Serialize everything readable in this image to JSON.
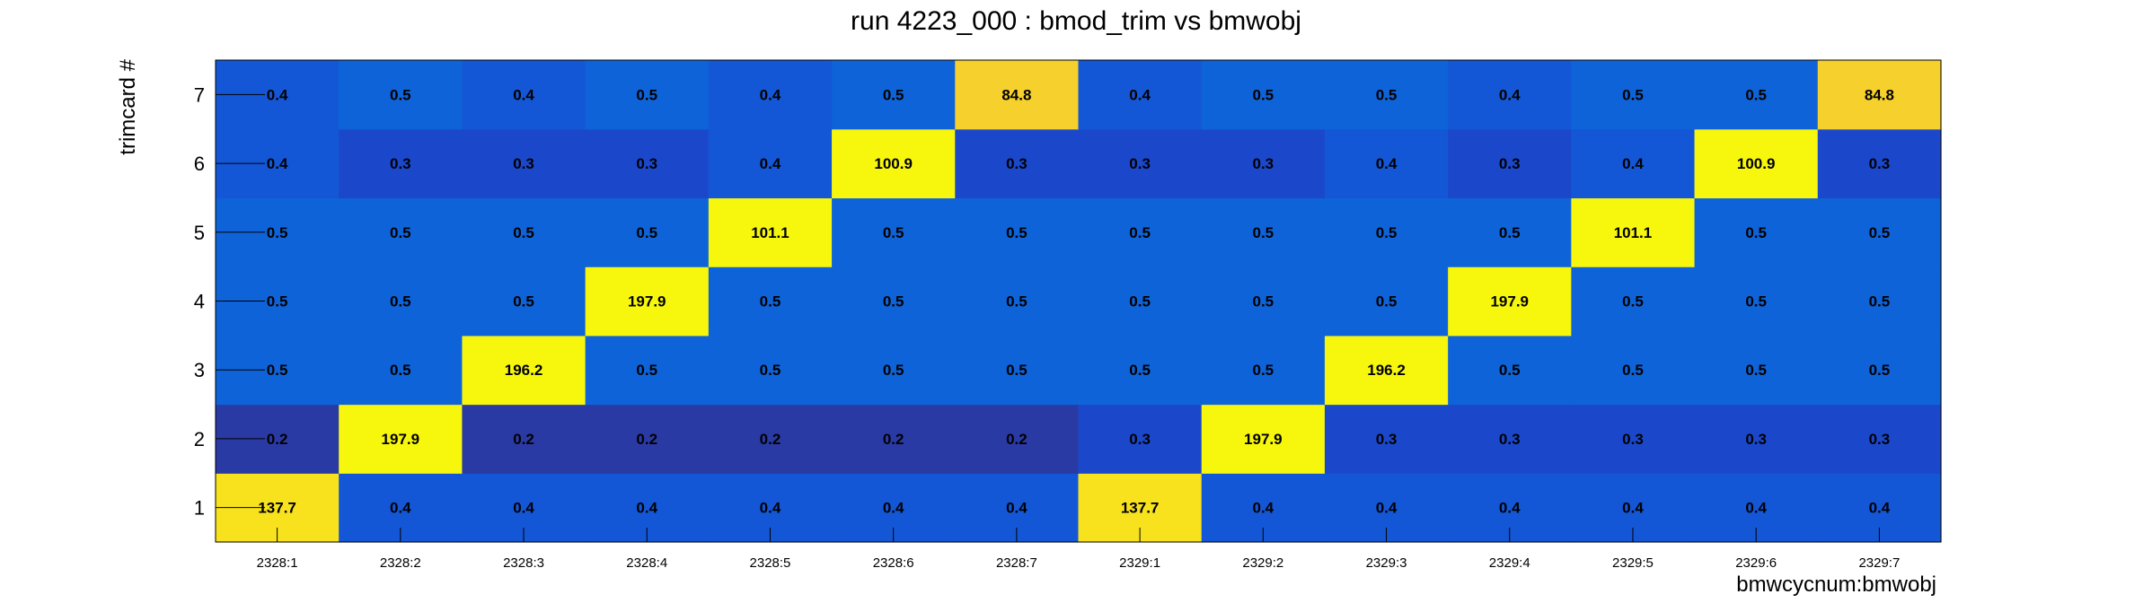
{
  "chart_data": {
    "type": "heatmap",
    "title": "run 4223_000 : bmod_trim vs bmwobj",
    "xlabel": "bmwcycnum:bmwobj",
    "ylabel": "trimcard #",
    "x_categories": [
      "2328:1",
      "2328:2",
      "2328:3",
      "2328:4",
      "2328:5",
      "2328:6",
      "2328:7",
      "2329:1",
      "2329:2",
      "2329:3",
      "2329:4",
      "2329:5",
      "2329:6",
      "2329:7"
    ],
    "y_categories": [
      "1",
      "2",
      "3",
      "4",
      "5",
      "6",
      "7"
    ],
    "values": [
      [
        "137.7",
        "0.4",
        "0.4",
        "0.4",
        "0.4",
        "0.4",
        "0.4",
        "137.7",
        "0.4",
        "0.4",
        "0.4",
        "0.4",
        "0.4",
        "0.4"
      ],
      [
        "0.2",
        "197.9",
        "0.2",
        "0.2",
        "0.2",
        "0.2",
        "0.2",
        "0.3",
        "197.9",
        "0.3",
        "0.3",
        "0.3",
        "0.3",
        "0.3"
      ],
      [
        "0.5",
        "0.5",
        "196.2",
        "0.5",
        "0.5",
        "0.5",
        "0.5",
        "0.5",
        "0.5",
        "196.2",
        "0.5",
        "0.5",
        "0.5",
        "0.5"
      ],
      [
        "0.5",
        "0.5",
        "0.5",
        "197.9",
        "0.5",
        "0.5",
        "0.5",
        "0.5",
        "0.5",
        "0.5",
        "197.9",
        "0.5",
        "0.5",
        "0.5"
      ],
      [
        "0.5",
        "0.5",
        "0.5",
        "0.5",
        "101.1",
        "0.5",
        "0.5",
        "0.5",
        "0.5",
        "0.5",
        "0.5",
        "101.1",
        "0.5",
        "0.5"
      ],
      [
        "0.4",
        "0.3",
        "0.3",
        "0.3",
        "0.4",
        "100.9",
        "0.3",
        "0.3",
        "0.3",
        "0.4",
        "0.3",
        "0.4",
        "100.9",
        "0.3"
      ],
      [
        "0.4",
        "0.5",
        "0.4",
        "0.5",
        "0.4",
        "0.5",
        "84.8",
        "0.4",
        "0.5",
        "0.5",
        "0.4",
        "0.5",
        "0.5",
        "84.8"
      ]
    ],
    "colors": {
      "yellow": "#f7f70e",
      "gold_high": "#f7e21d",
      "gold": "#f6d02c",
      "blue_bright": "#0f63d8",
      "blue_mid": "#1457d6",
      "blue_dark": "#1b48cb",
      "navy": "#2a3aa4"
    },
    "grid": false,
    "legend": "none"
  }
}
